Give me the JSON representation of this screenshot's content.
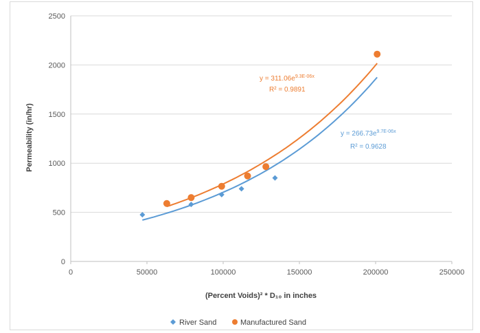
{
  "chart_data": {
    "type": "scatter",
    "title": "",
    "xlabel": "(Percent Voids)² * D₁₀ in inches",
    "ylabel": "Permeability (in/hr)",
    "xlim": [
      0,
      250000
    ],
    "ylim": [
      0,
      2500
    ],
    "x_ticks": [
      "0",
      "50000",
      "100000",
      "150000",
      "200000",
      "250000"
    ],
    "y_ticks": [
      "0",
      "500",
      "1000",
      "1500",
      "2000",
      "2500"
    ],
    "grid": "horizontal",
    "legend_position": "bottom",
    "series": [
      {
        "name": "River Sand",
        "color": "#5b9bd5",
        "marker": "diamond",
        "points": [
          [
            47000,
            475
          ],
          [
            79000,
            580
          ],
          [
            99000,
            680
          ],
          [
            112000,
            740
          ],
          [
            134000,
            850
          ]
        ],
        "trendline": {
          "a": 266.73,
          "b": 9.7e-06,
          "x_range": [
            47000,
            201000
          ]
        },
        "equation": {
          "prefix": "y = 266.73e",
          "exponent": "9.7E-06x",
          "r2": "R² = 0.9628"
        }
      },
      {
        "name": "Manufactured Sand",
        "color": "#ed7d31",
        "marker": "circle",
        "points": [
          [
            63000,
            590
          ],
          [
            79000,
            650
          ],
          [
            99000,
            765
          ],
          [
            116000,
            870
          ],
          [
            128000,
            965
          ],
          [
            201000,
            2110
          ]
        ],
        "trendline": {
          "a": 311.06,
          "b": 9.3e-06,
          "x_range": [
            63000,
            201000
          ]
        },
        "equation": {
          "prefix": "y = 311.06e",
          "exponent": "9.3E-06x",
          "r2": "R² = 0.9891"
        }
      }
    ]
  }
}
